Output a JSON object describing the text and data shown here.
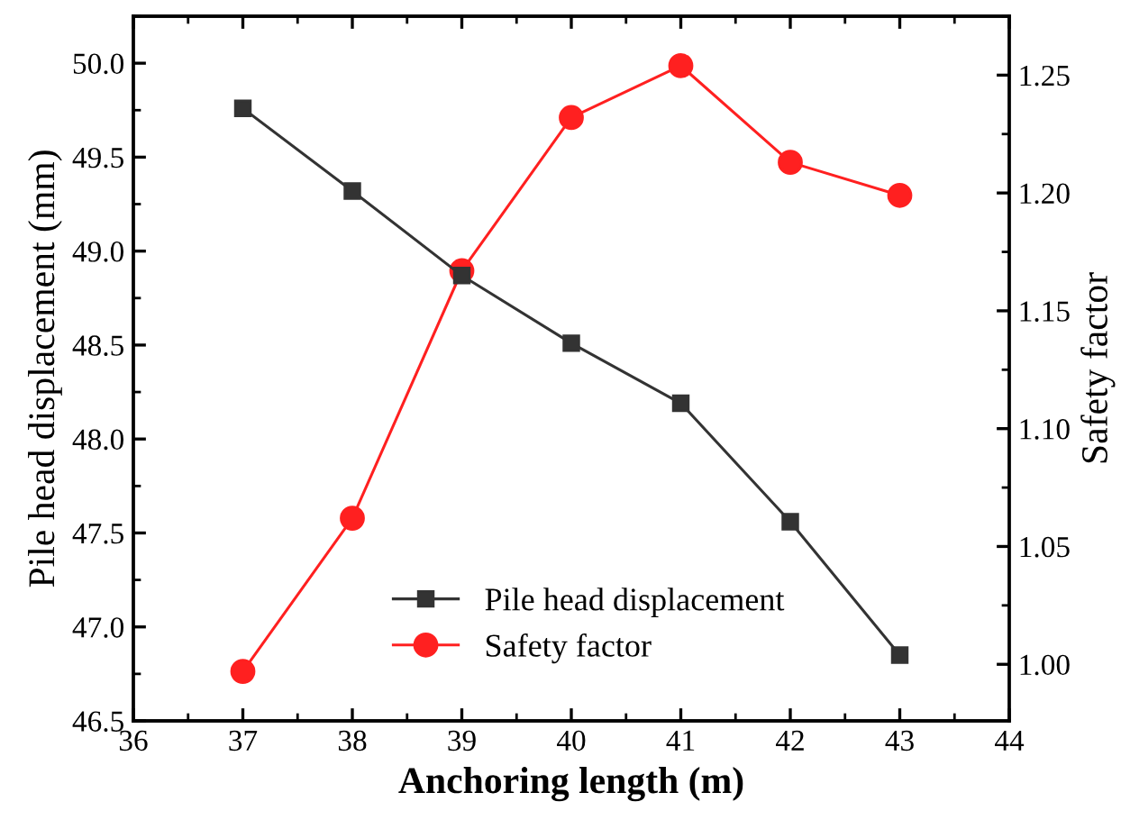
{
  "chart_data": {
    "type": "line",
    "xlabel": "Anchoring length (m)",
    "ylabel": "Pile head displacement (mm)",
    "y2label": "Safety factor",
    "x": [
      37,
      38,
      39,
      40,
      41,
      42,
      43
    ],
    "series": [
      {
        "name": "Pile head displacement",
        "color": "#333333",
        "marker": "square",
        "values": [
          49.76,
          49.32,
          48.87,
          48.51,
          48.19,
          47.56,
          46.85
        ]
      },
      {
        "name": "Safety factor",
        "color": "#ff2020",
        "marker": "circle",
        "axis": "y2",
        "values": [
          0.997,
          1.062,
          1.167,
          1.232,
          1.254,
          1.213,
          1.199
        ]
      }
    ],
    "xlim": [
      36,
      44
    ],
    "xticks": [
      36,
      37,
      38,
      39,
      40,
      41,
      42,
      43,
      44
    ],
    "ylim": [
      46.5,
      50.25
    ],
    "yticks": [
      {
        "value": 46.5,
        "label": "46.5"
      },
      {
        "value": 47.0,
        "label": "47.0"
      },
      {
        "value": 47.5,
        "label": "47.5"
      },
      {
        "value": 48.0,
        "label": "48.0"
      },
      {
        "value": 48.5,
        "label": "48.5"
      },
      {
        "value": 49.0,
        "label": "49.0"
      },
      {
        "value": 49.5,
        "label": "49.5"
      },
      {
        "value": 50.0,
        "label": "50.0"
      }
    ],
    "y2lim": [
      0.976,
      1.275
    ],
    "y2ticks": [
      {
        "value": 1.0,
        "label": "1.00"
      },
      {
        "value": 1.05,
        "label": "1.05"
      },
      {
        "value": 1.1,
        "label": "1.10"
      },
      {
        "value": 1.15,
        "label": "1.15"
      },
      {
        "value": 1.2,
        "label": "1.20"
      },
      {
        "value": 1.25,
        "label": "1.25"
      }
    ],
    "legend": "bottom",
    "grid": false,
    "line_style": "solid"
  }
}
